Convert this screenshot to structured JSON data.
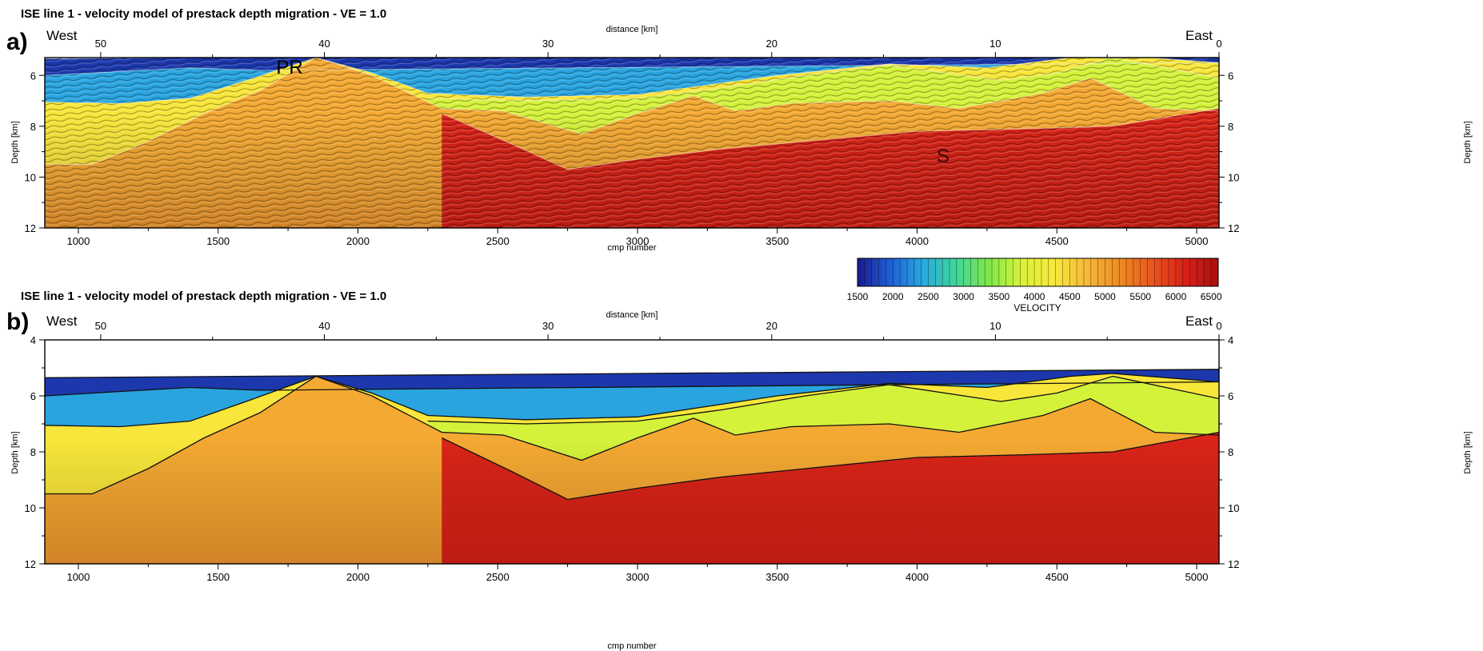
{
  "panels": [
    {
      "label": "a)",
      "title": "ISE  line 1 - velocity model of prestack depth migration - VE = 1.0",
      "west_label": "West",
      "east_label": "East",
      "top_axis_label": "distance [km]",
      "bottom_axis_label": "cmp number",
      "left_axis_label": "Depth [km]",
      "right_axis_label": "Depth [km]",
      "annotations": [
        "PR",
        "S"
      ]
    },
    {
      "label": "b)",
      "title": "ISE line 1 - velocity model of prestack depth migration - VE = 1.0",
      "west_label": "West",
      "east_label": "East",
      "top_axis_label": "distance [km]",
      "bottom_axis_label": "cmp number",
      "left_axis_label": "Depth [km]",
      "right_axis_label": "Depth [km]",
      "annotations": []
    }
  ],
  "colorbar": {
    "label": "VELOCITY",
    "ticks": [
      1500,
      2000,
      2500,
      3000,
      3500,
      4000,
      4500,
      5000,
      5500,
      6000,
      6500
    ],
    "range": [
      1500,
      6600
    ],
    "colors": [
      "#1a1a8c",
      "#1f5fd6",
      "#2aa8e0",
      "#3fd69a",
      "#7fe84a",
      "#d9f23a",
      "#f8e83a",
      "#f6b93a",
      "#ef8a22",
      "#e8551e",
      "#d92018",
      "#a81010"
    ]
  },
  "chart_data": [
    {
      "type": "heatmap",
      "title": "ISE  line 1 - velocity model of prestack depth migration - VE = 1.0",
      "xlabel": "cmp number",
      "x2label": "distance [km]",
      "ylabel": "Depth [km]",
      "xlim": [
        880,
        5080
      ],
      "x_ticks": [
        1000,
        1500,
        2000,
        2500,
        3000,
        3500,
        4000,
        4500,
        5000
      ],
      "x2lim": [
        52.5,
        0
      ],
      "x2_ticks": [
        50,
        40,
        30,
        20,
        10,
        0
      ],
      "ylim": [
        12,
        5.3
      ],
      "y_ticks": [
        6,
        8,
        10,
        12
      ],
      "underlay": "seismic reflection data",
      "annotations": [
        "PR",
        "S"
      ],
      "layers": [
        {
          "velocity": 1700,
          "top": [
            [
              880,
              5.35
            ],
            [
              5080,
              5.05
            ]
          ]
        },
        {
          "velocity": 2400,
          "top": [
            [
              880,
              6.0
            ],
            [
              1400,
              5.7
            ],
            [
              1650,
              5.8
            ],
            [
              5080,
              5.5
            ]
          ]
        },
        {
          "velocity": 4300,
          "top": [
            [
              880,
              7.05
            ],
            [
              1150,
              7.1
            ],
            [
              1400,
              6.9
            ],
            [
              1600,
              6.2
            ],
            [
              1850,
              5.3
            ],
            [
              2050,
              5.9
            ],
            [
              2250,
              6.7
            ],
            [
              2600,
              6.85
            ],
            [
              3000,
              6.75
            ],
            [
              3300,
              6.3
            ],
            [
              3500,
              6.0
            ],
            [
              3900,
              5.55
            ],
            [
              4250,
              5.7
            ],
            [
              4550,
              5.3
            ],
            [
              4700,
              5.2
            ],
            [
              5080,
              5.5
            ]
          ]
        },
        {
          "velocity": 3800,
          "top": [
            [
              2250,
              6.9
            ],
            [
              2600,
              7.0
            ],
            [
              3000,
              6.9
            ],
            [
              3300,
              6.5
            ],
            [
              3600,
              6.0
            ],
            [
              3900,
              5.6
            ],
            [
              4300,
              6.2
            ],
            [
              4500,
              5.9
            ],
            [
              4700,
              5.3
            ],
            [
              5080,
              6.1
            ]
          ]
        },
        {
          "velocity": 4900,
          "top": [
            [
              880,
              9.5
            ],
            [
              1050,
              9.5
            ],
            [
              1250,
              8.6
            ],
            [
              1450,
              7.5
            ],
            [
              1650,
              6.6
            ],
            [
              1850,
              5.3
            ],
            [
              2050,
              6.0
            ],
            [
              2300,
              7.3
            ],
            [
              2520,
              7.4
            ],
            [
              2800,
              8.3
            ],
            [
              3000,
              7.5
            ],
            [
              3200,
              6.8
            ],
            [
              3350,
              7.4
            ],
            [
              3550,
              7.1
            ],
            [
              3900,
              7.0
            ],
            [
              4150,
              7.3
            ],
            [
              4450,
              6.7
            ],
            [
              4620,
              6.1
            ],
            [
              4850,
              7.3
            ],
            [
              5080,
              7.4
            ]
          ]
        },
        {
          "velocity": 6100,
          "top": [
            [
              2300,
              7.5
            ],
            [
              2550,
              8.7
            ],
            [
              2750,
              9.7
            ],
            [
              3000,
              9.3
            ],
            [
              3300,
              8.9
            ],
            [
              3600,
              8.6
            ],
            [
              4000,
              8.2
            ],
            [
              4400,
              8.1
            ],
            [
              4700,
              8.0
            ],
            [
              5080,
              7.3
            ]
          ]
        }
      ]
    },
    {
      "type": "heatmap",
      "title": "ISE line 1 - velocity model of prestack depth migration - VE = 1.0",
      "xlabel": "cmp number",
      "x2label": "distance [km]",
      "ylabel": "Depth [km]",
      "xlim": [
        880,
        5080
      ],
      "x_ticks": [
        1000,
        1500,
        2000,
        2500,
        3000,
        3500,
        4000,
        4500,
        5000
      ],
      "x2lim": [
        52.5,
        0
      ],
      "x2_ticks": [
        50,
        40,
        30,
        20,
        10,
        0
      ],
      "ylim": [
        12,
        4
      ],
      "y_ticks": [
        4,
        6,
        8,
        10,
        12
      ],
      "layers": [
        {
          "velocity": 1700,
          "top": [
            [
              880,
              5.35
            ],
            [
              5080,
              5.05
            ]
          ]
        },
        {
          "velocity": 2400,
          "top": [
            [
              880,
              6.0
            ],
            [
              1400,
              5.7
            ],
            [
              1650,
              5.8
            ],
            [
              5080,
              5.5
            ]
          ]
        },
        {
          "velocity": 4300,
          "top": [
            [
              880,
              7.05
            ],
            [
              1150,
              7.1
            ],
            [
              1400,
              6.9
            ],
            [
              1600,
              6.2
            ],
            [
              1850,
              5.3
            ],
            [
              2050,
              5.9
            ],
            [
              2250,
              6.7
            ],
            [
              2600,
              6.85
            ],
            [
              3000,
              6.75
            ],
            [
              3300,
              6.3
            ],
            [
              3500,
              6.0
            ],
            [
              3900,
              5.55
            ],
            [
              4250,
              5.7
            ],
            [
              4550,
              5.3
            ],
            [
              4700,
              5.2
            ],
            [
              5080,
              5.5
            ]
          ]
        },
        {
          "velocity": 3800,
          "top": [
            [
              2250,
              6.9
            ],
            [
              2600,
              7.0
            ],
            [
              3000,
              6.9
            ],
            [
              3300,
              6.5
            ],
            [
              3600,
              6.0
            ],
            [
              3900,
              5.6
            ],
            [
              4300,
              6.2
            ],
            [
              4500,
              5.9
            ],
            [
              4700,
              5.3
            ],
            [
              5080,
              6.1
            ]
          ]
        },
        {
          "velocity": 4900,
          "top": [
            [
              880,
              9.5
            ],
            [
              1050,
              9.5
            ],
            [
              1250,
              8.6
            ],
            [
              1450,
              7.5
            ],
            [
              1650,
              6.6
            ],
            [
              1850,
              5.3
            ],
            [
              2050,
              6.0
            ],
            [
              2300,
              7.3
            ],
            [
              2520,
              7.4
            ],
            [
              2800,
              8.3
            ],
            [
              3000,
              7.5
            ],
            [
              3200,
              6.8
            ],
            [
              3350,
              7.4
            ],
            [
              3550,
              7.1
            ],
            [
              3900,
              7.0
            ],
            [
              4150,
              7.3
            ],
            [
              4450,
              6.7
            ],
            [
              4620,
              6.1
            ],
            [
              4850,
              7.3
            ],
            [
              5080,
              7.4
            ]
          ]
        },
        {
          "velocity": 6100,
          "top": [
            [
              2300,
              7.5
            ],
            [
              2550,
              8.7
            ],
            [
              2750,
              9.7
            ],
            [
              3000,
              9.3
            ],
            [
              3300,
              8.9
            ],
            [
              3600,
              8.6
            ],
            [
              4000,
              8.2
            ],
            [
              4400,
              8.1
            ],
            [
              4700,
              8.0
            ],
            [
              5080,
              7.3
            ]
          ]
        }
      ]
    }
  ]
}
